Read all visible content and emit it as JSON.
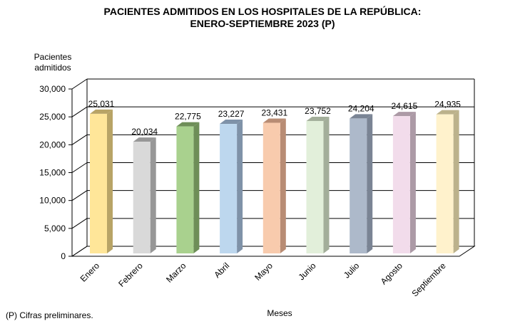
{
  "chart_data": {
    "type": "bar",
    "title_line1": "PACIENTES ADMITIDOS EN LOS HOSPITALES DE LA REPÚBLICA:",
    "title_line2": "ENERO-SEPTIEMBRE 2023 (P)",
    "ylabel_line1": "Pacientes",
    "ylabel_line2": "admitidos",
    "xlabel": "Meses",
    "ylim": [
      0,
      30000
    ],
    "yticks": [
      0,
      5000,
      10000,
      15000,
      20000,
      25000,
      30000
    ],
    "ytick_labels": [
      "0",
      "5,000",
      "10,000",
      "15,000",
      "20,000",
      "25,000",
      "30,000"
    ],
    "grid": true,
    "categories": [
      "Enero",
      "Febrero",
      "Marzo",
      "Abril",
      "Mayo",
      "Junio",
      "Julio",
      "Agosto",
      "Septiembre"
    ],
    "values": [
      25031,
      20034,
      22775,
      23227,
      23431,
      23752,
      24204,
      24615,
      24935
    ],
    "value_labels": [
      "25,031",
      "20,034",
      "22,775",
      "23,227",
      "23,431",
      "23,752",
      "24,204",
      "24,615",
      "24,935"
    ],
    "colors": [
      "#FFE699",
      "#D9D9D9",
      "#A9D18E",
      "#BDD7EE",
      "#F8CBAD",
      "#E2EFDA",
      "#ADB9CA",
      "#F2DCEB",
      "#FFF2CC"
    ],
    "side_colors": [
      "#B8A466",
      "#979797",
      "#6E8E58",
      "#7F92A8",
      "#B88C74",
      "#A3AE9A",
      "#7A8494",
      "#AC9AA6",
      "#BCB28C"
    ]
  },
  "footnote": "(P) Cifras  preliminares."
}
